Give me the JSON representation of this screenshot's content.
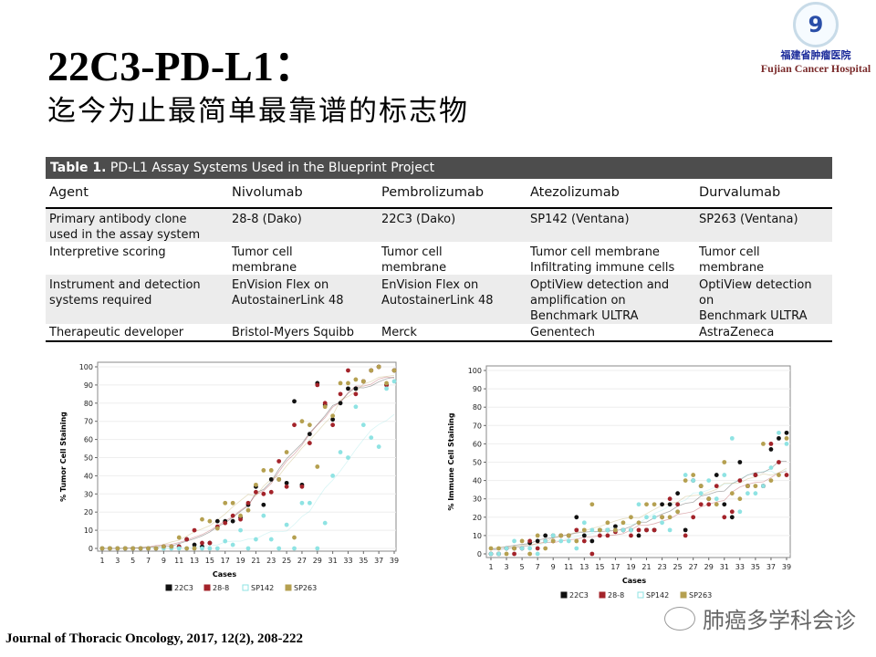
{
  "slide": {
    "title": "22C3-PD-L1：",
    "subtitle": "迄今为止最简单最靠谱的标志物",
    "logo": {
      "name_cn": "福建省肿瘤医院",
      "name_en": "Fujian Cancer Hospital"
    },
    "citation": "Journal of Thoracic  Oncology, 2017, 12(2), 208-222",
    "watermark": "肺癌多学科会诊"
  },
  "table": {
    "caption_bold": "Table 1.",
    "caption": " PD-L1 Assay Systems Used in the Blueprint Project",
    "headers": [
      "Agent",
      "Nivolumab",
      "Pembrolizumab",
      "Atezolizumab",
      "Durvalumab"
    ],
    "rows": [
      [
        "Primary antibody clone\n   used in the assay system",
        "28-8 (Dako)",
        "22C3 (Dako)",
        "SP142 (Ventana)",
        "SP263 (Ventana)"
      ],
      [
        "Interpretive scoring",
        "Tumor cell\n   membrane",
        "Tumor cell\n   membrane",
        "Tumor cell membrane\nInfiltrating immune cells",
        "Tumor cell\n   membrane"
      ],
      [
        "Instrument and detection\n   systems required",
        "EnVision Flex on\n   AutostainerLink 48",
        "EnVision Flex on\n   AutostainerLink 48",
        "OptiView detection and\n   amplification on\n   Benchmark ULTRA",
        "OptiView detection on\n   Benchmark ULTRA"
      ],
      [
        "Therapeutic developer",
        "Bristol-Myers Squibb",
        "Merck",
        "Genentech",
        "AstraZeneca"
      ]
    ]
  },
  "chart_data": [
    {
      "type": "scatter",
      "title": "",
      "xlabel": "Cases",
      "ylabel": "% Tumor Cell Staining",
      "xlim": [
        1,
        39
      ],
      "ylim": [
        0,
        100
      ],
      "xticks": [
        "1",
        "3",
        "5",
        "7",
        "9",
        "11",
        "13",
        "15",
        "17",
        "19",
        "21",
        "23",
        "25",
        "27",
        "29",
        "31",
        "33",
        "35",
        "37",
        "39"
      ],
      "yticks": [
        "0",
        "10",
        "20",
        "30",
        "40",
        "50",
        "60",
        "70",
        "80",
        "90",
        "100"
      ],
      "legend": "bottom",
      "grid": true,
      "series": [
        {
          "name": "22C3",
          "color": "#111111",
          "values": [
            0,
            0,
            0,
            0,
            0,
            0,
            0,
            0,
            1,
            1,
            1,
            5,
            2,
            1,
            3,
            15,
            15,
            15,
            17,
            24,
            34,
            24,
            38,
            38,
            36,
            81,
            35,
            63,
            91,
            79,
            71,
            80,
            88,
            88,
            92,
            98,
            100,
            90,
            98
          ]
        },
        {
          "name": "28-8",
          "color": "#a3232a",
          "values": [
            0,
            0,
            0,
            0,
            0,
            0,
            0,
            0,
            1,
            1,
            1,
            5,
            10,
            3,
            3,
            12,
            14,
            18,
            16,
            25,
            31,
            30,
            31,
            48,
            34,
            68,
            34,
            58,
            90,
            80,
            68,
            85,
            98,
            85,
            92,
            98,
            100,
            90,
            98
          ]
        },
        {
          "name": "SP142",
          "color": "#8fe3e3",
          "values": [
            0,
            0,
            0,
            0,
            0,
            0,
            0,
            0,
            0,
            0,
            0,
            0,
            0,
            0,
            0,
            0,
            4,
            2,
            10,
            0,
            5,
            18,
            5,
            0,
            13,
            0,
            25,
            25,
            0,
            14,
            40,
            53,
            50,
            78,
            68,
            61,
            56,
            88,
            92
          ]
        },
        {
          "name": "SP263",
          "color": "#b5a050",
          "values": [
            0,
            0,
            0,
            0,
            0,
            0,
            0,
            0,
            1,
            1,
            6,
            0,
            0,
            16,
            15,
            11,
            25,
            25,
            18,
            21,
            35,
            43,
            43,
            38,
            53,
            6,
            70,
            68,
            45,
            78,
            73,
            91,
            91,
            93,
            92,
            98,
            100,
            91,
            98
          ]
        }
      ]
    },
    {
      "type": "scatter",
      "title": "",
      "xlabel": "Cases",
      "ylabel": "% Immune Cell Staining",
      "xlim": [
        1,
        39
      ],
      "ylim": [
        0,
        100
      ],
      "xticks": [
        "1",
        "3",
        "5",
        "7",
        "9",
        "11",
        "13",
        "15",
        "17",
        "19",
        "21",
        "23",
        "25",
        "27",
        "29",
        "31",
        "33",
        "35",
        "37",
        "39"
      ],
      "yticks": [
        "0",
        "10",
        "20",
        "30",
        "40",
        "50",
        "60",
        "70",
        "80",
        "90",
        "100"
      ],
      "legend": "bottom",
      "grid": true,
      "series": [
        {
          "name": "22C3",
          "color": "#111111",
          "values": [
            0,
            0,
            3,
            3,
            3,
            6,
            7,
            10,
            10,
            10,
            10,
            20,
            10,
            7,
            13,
            13,
            15,
            13,
            13,
            10,
            13,
            13,
            27,
            27,
            33,
            13,
            40,
            37,
            30,
            43,
            27,
            20,
            50,
            37,
            43,
            37,
            57,
            63,
            66
          ]
        },
        {
          "name": "28-8",
          "color": "#a3232a",
          "values": [
            0,
            0,
            3,
            0,
            3,
            7,
            3,
            7,
            7,
            10,
            10,
            13,
            7,
            0,
            10,
            10,
            12,
            13,
            10,
            13,
            13,
            13,
            20,
            30,
            27,
            10,
            20,
            27,
            27,
            37,
            20,
            23,
            40,
            37,
            43,
            37,
            60,
            50,
            43
          ]
        },
        {
          "name": "SP142",
          "color": "#8fe3e3",
          "values": [
            0,
            0,
            3,
            7,
            3,
            3,
            0,
            7,
            10,
            7,
            7,
            3,
            17,
            13,
            13,
            13,
            13,
            13,
            13,
            27,
            20,
            20,
            17,
            13,
            23,
            43,
            40,
            33,
            40,
            30,
            43,
            63,
            23,
            33,
            33,
            37,
            47,
            66,
            60
          ]
        },
        {
          "name": "SP263",
          "color": "#b5a050",
          "values": [
            3,
            3,
            0,
            3,
            7,
            0,
            10,
            3,
            7,
            10,
            10,
            7,
            13,
            27,
            13,
            17,
            13,
            17,
            20,
            17,
            27,
            27,
            20,
            20,
            23,
            40,
            43,
            37,
            30,
            27,
            50,
            33,
            30,
            37,
            37,
            60,
            40,
            43,
            63
          ]
        }
      ]
    }
  ]
}
